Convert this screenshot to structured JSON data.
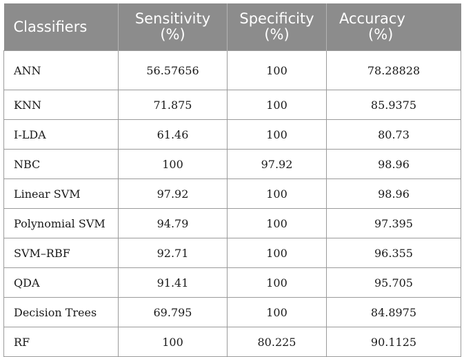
{
  "table": {
    "headers": [
      {
        "line1": "Classifiers",
        "line2": ""
      },
      {
        "line1": "Sensitivity",
        "line2": "(%)"
      },
      {
        "line1": "Specificity",
        "line2": "(%)"
      },
      {
        "line1": "Accuracy",
        "line2": "(%)"
      }
    ],
    "rows": [
      [
        "ANN",
        "56.57656",
        "100",
        "78.28828"
      ],
      [
        "KNN",
        "71.875",
        "100",
        "85.9375"
      ],
      [
        "I-LDA",
        "61.46",
        "100",
        "80.73"
      ],
      [
        "NBC",
        "100",
        "97.92",
        "98.96"
      ],
      [
        "Linear SVM",
        "97.92",
        "100",
        "98.96"
      ],
      [
        "Polynomial SVM",
        "94.79",
        "100",
        "97.395"
      ],
      [
        "SVM–RBF",
        "92.71",
        "100",
        "96.355"
      ],
      [
        "QDA",
        "91.41",
        "100",
        "95.705"
      ],
      [
        "Decision Trees",
        "69.795",
        "100",
        "84.8975"
      ],
      [
        "RF",
        "100",
        "80.225",
        "90.1125"
      ]
    ]
  }
}
